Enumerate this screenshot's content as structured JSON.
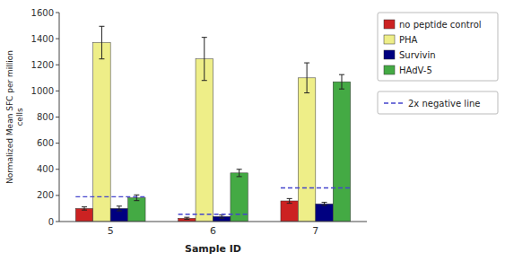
{
  "chart_data": {
    "type": "bar",
    "xlabel": "Sample ID",
    "ylabel": "Normalized Mean SFC per million\ncells",
    "categories": [
      "5",
      "6",
      "7"
    ],
    "series": [
      {
        "name": "no peptide control",
        "color": "#cc2222",
        "values": [
          100,
          25,
          158
        ],
        "errors": [
          12,
          8,
          18
        ]
      },
      {
        "name": "PHA",
        "color": "#eeee88",
        "values": [
          1370,
          1245,
          1100
        ],
        "errors": [
          125,
          165,
          115
        ]
      },
      {
        "name": "Survivin",
        "color": "#000080",
        "values": [
          100,
          38,
          135
        ],
        "errors": [
          18,
          12,
          12
        ]
      },
      {
        "name": "HAdV-5",
        "color": "#44aa44",
        "values": [
          182,
          372,
          1070
        ],
        "errors": [
          22,
          28,
          55
        ]
      },
      {
        "name": "2x negative line",
        "type": "line",
        "line_style": "dashed",
        "color": "#4444cc",
        "values": [
          190,
          55,
          258
        ]
      }
    ],
    "ylim": [
      0,
      1600
    ],
    "yticks": [
      0,
      200,
      400,
      600,
      800,
      1000,
      1200,
      1400,
      1600
    ],
    "grid": false,
    "legend": "right"
  }
}
